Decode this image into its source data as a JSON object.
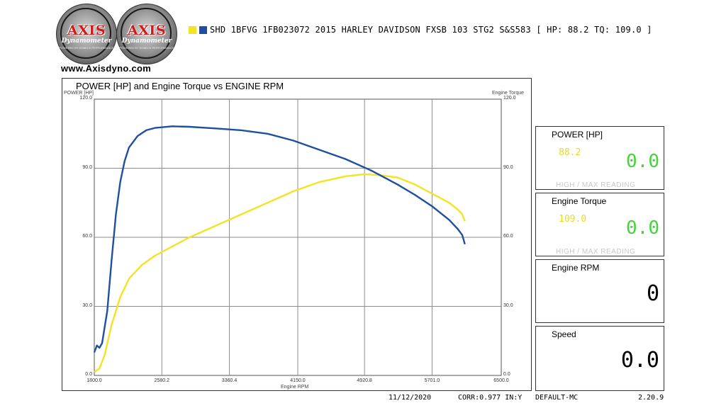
{
  "logos": [
    {
      "word": "AXIS",
      "sub": "Dynamometer",
      "tag": "POWERED BY DOBECK PERFORMANCE"
    },
    {
      "word": "AXIS",
      "sub": "Dynamometer",
      "tag": "POWERED BY DOBECK PERFORMANCE"
    }
  ],
  "website": "www.Axisdyno.com",
  "run_label": "SHD 1BFVG 1FB023072 2015 HARLEY DAVIDSON FXSB  103 STG2 S&S583 [ HP: 88.2 TQ: 109.0 ]",
  "colors": {
    "power": "#f2e422",
    "torque": "#1f4fa0",
    "grid": "#8c8c8c",
    "green": "#43d43a"
  },
  "chart_data": {
    "type": "line",
    "title": "POWER [HP] and Engine Torque vs ENGINE RPM",
    "xlabel": "Engine RPM",
    "ylabel_left": "POWER [HP]",
    "ylabel_right": "Engine Torque",
    "xlim": [
      1800.0,
      6500.0
    ],
    "ylim": [
      0,
      120
    ],
    "x_ticks": [
      "1800.0",
      "2580.2",
      "3360.4",
      "4150.0",
      "4920.8",
      "5701.0",
      "6500.0"
    ],
    "x_tick_values": [
      1800,
      2580.2,
      3360.4,
      4150,
      4920.8,
      5701,
      6500
    ],
    "y_ticks": [
      "0.0",
      "30.0",
      "60.0",
      "90.0",
      "120.0"
    ],
    "y_tick_values": [
      0,
      30,
      60,
      90,
      120
    ],
    "grid": true,
    "series": [
      {
        "name": "POWER [HP]",
        "color": "#f2e422",
        "points": [
          [
            1800,
            1.5
          ],
          [
            1860,
            3
          ],
          [
            1920,
            9
          ],
          [
            2000,
            22
          ],
          [
            2100,
            34
          ],
          [
            2200,
            42
          ],
          [
            2350,
            48
          ],
          [
            2500,
            52
          ],
          [
            2700,
            56
          ],
          [
            2900,
            60
          ],
          [
            3200,
            65
          ],
          [
            3500,
            70
          ],
          [
            3800,
            75
          ],
          [
            4100,
            80
          ],
          [
            4400,
            84
          ],
          [
            4700,
            86.5
          ],
          [
            4920,
            87.4
          ],
          [
            5100,
            87
          ],
          [
            5300,
            86
          ],
          [
            5500,
            83
          ],
          [
            5700,
            79
          ],
          [
            5900,
            75
          ],
          [
            6000,
            72
          ],
          [
            6050,
            70
          ],
          [
            6080,
            67
          ]
        ]
      },
      {
        "name": "Engine Torque",
        "color": "#1f4fa0",
        "points": [
          [
            1800,
            10
          ],
          [
            1830,
            13
          ],
          [
            1860,
            12
          ],
          [
            1890,
            14
          ],
          [
            1950,
            28
          ],
          [
            2000,
            50
          ],
          [
            2050,
            70
          ],
          [
            2100,
            84
          ],
          [
            2150,
            93
          ],
          [
            2200,
            99
          ],
          [
            2300,
            104
          ],
          [
            2400,
            106.5
          ],
          [
            2500,
            107.5
          ],
          [
            2700,
            108.2
          ],
          [
            2900,
            108
          ],
          [
            3200,
            107.3
          ],
          [
            3500,
            106.5
          ],
          [
            3800,
            105
          ],
          [
            4100,
            102
          ],
          [
            4400,
            98
          ],
          [
            4700,
            94
          ],
          [
            5000,
            89
          ],
          [
            5300,
            83
          ],
          [
            5500,
            78.5
          ],
          [
            5700,
            73.5
          ],
          [
            5900,
            67.5
          ],
          [
            6000,
            63.5
          ],
          [
            6050,
            61
          ],
          [
            6080,
            57
          ]
        ]
      }
    ]
  },
  "panels": [
    {
      "title": "POWER [HP]",
      "max": "88.2",
      "value": "0.0",
      "foot": "HIGH / MAX READING"
    },
    {
      "title": "Engine Torque",
      "max": "109.0",
      "value": "0.0",
      "foot": "HIGH / MAX READING"
    },
    {
      "title": "Engine RPM",
      "value": "0"
    },
    {
      "title": "Speed",
      "value": "0.0"
    }
  ],
  "footer": {
    "date": "11/12/2020",
    "corr": "CORR:0.977 IN:Y",
    "profile": "DEFAULT-MC",
    "version": "2.20.9"
  }
}
